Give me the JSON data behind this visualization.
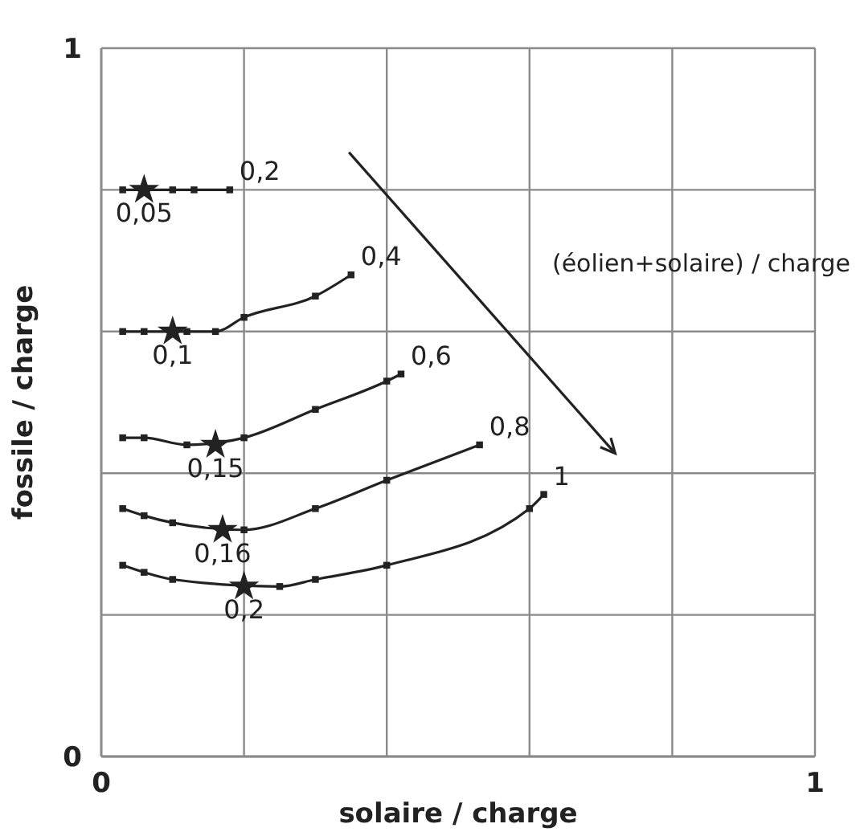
{
  "chart_data": {
    "type": "line",
    "xlabel": "solaire / charge",
    "ylabel": "fossile / charge",
    "xlim": [
      0,
      1
    ],
    "ylim": [
      0,
      1
    ],
    "xticks": [
      0,
      {
        "value": 0.2,
        "label": null
      },
      {
        "value": 0.4,
        "label": null
      },
      {
        "value": 0.6,
        "label": null
      },
      {
        "value": 0.8,
        "label": null
      },
      1
    ],
    "yticks": [
      0,
      {
        "value": 0.2,
        "label": null
      },
      {
        "value": 0.4,
        "label": null
      },
      {
        "value": 0.6,
        "label": null
      },
      {
        "value": 0.8,
        "label": null
      },
      1
    ],
    "grid": true,
    "marker": "square",
    "line_style": "solid",
    "annotations": [
      "(éolien+solaire) / charge",
      {
        "text": "0,05",
        "x": 0.06,
        "y": 0.8
      },
      {
        "text": "0,1",
        "x": 0.1,
        "y": 0.6
      },
      {
        "text": "0,15",
        "x": 0.16,
        "y": 0.44
      },
      {
        "text": "0,16",
        "x": 0.17,
        "y": 0.32
      },
      {
        "text": "0,2",
        "x": 0.2,
        "y": 0.24
      }
    ],
    "series": [
      {
        "name": "0,2",
        "color": "#222222",
        "x": [
          0.03,
          0.1,
          0.13,
          0.18
        ],
        "values": [
          0.8,
          0.8,
          0.8,
          0.8
        ]
      },
      {
        "name": "0,4",
        "color": "#222222",
        "x": [
          0.03,
          0.06,
          0.12,
          0.16,
          0.2,
          0.3,
          0.35
        ],
        "values": [
          0.6,
          0.6,
          0.6,
          0.6,
          0.62,
          0.65,
          0.68
        ]
      },
      {
        "name": "0,6",
        "color": "#222222",
        "x": [
          0.03,
          0.06,
          0.12,
          0.2,
          0.3,
          0.4,
          0.42
        ],
        "values": [
          0.45,
          0.45,
          0.44,
          0.45,
          0.49,
          0.53,
          0.54
        ]
      },
      {
        "name": "0,8",
        "color": "#222222",
        "x": [
          0.03,
          0.06,
          0.1,
          0.2,
          0.3,
          0.4,
          0.53
        ],
        "values": [
          0.35,
          0.34,
          0.33,
          0.32,
          0.35,
          0.39,
          0.44
        ]
      },
      {
        "name": "1",
        "color": "#222222",
        "x": [
          0.03,
          0.06,
          0.1,
          0.25,
          0.3,
          0.4,
          0.6,
          0.62
        ],
        "values": [
          0.27,
          0.26,
          0.25,
          0.24,
          0.25,
          0.27,
          0.35,
          0.37
        ]
      },
      {
        "type": "scatter",
        "marker": "star",
        "color": "#222222",
        "x": [
          0.06,
          0.1,
          0.16,
          0.17,
          0.2
        ],
        "values": [
          0.8,
          0.6,
          0.44,
          0.32,
          0.24
        ]
      }
    ]
  }
}
